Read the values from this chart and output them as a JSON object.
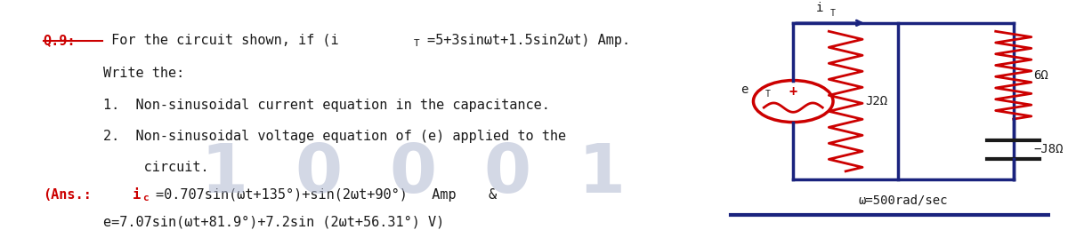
{
  "bg_color": "#ffffff",
  "question_label": "Q.9:",
  "write_the": "Write the:",
  "item1": "1.  Non-sinusoidal current equation in the capacitance.",
  "item2": "2.  Non-sinusoidal voltage equation of (e) applied to the",
  "item2b": "     circuit.",
  "ans_label": "(Ans.:",
  "text_color": "#1a1a1a",
  "red_color": "#cc0000",
  "blue_color": "#1a237e",
  "watermark_color": "#b0b8d0",
  "omega_label": "ω=500rad/sec",
  "j2_label": "J2Ω",
  "six_label": "6Ω",
  "j8_label": "−J8Ω",
  "ans1_plain": "=0.707sin(ωt+135°)+sin(2ωt+90°)   Amp    &",
  "ans2": "e=7.07sin(ωt+81.9°)+7.2sin (2ωt+56.31°) V)",
  "q_main": " For the circuit shown, if (i",
  "q_rest": "=5+3sinωt+1.5sin2ωt) Amp."
}
